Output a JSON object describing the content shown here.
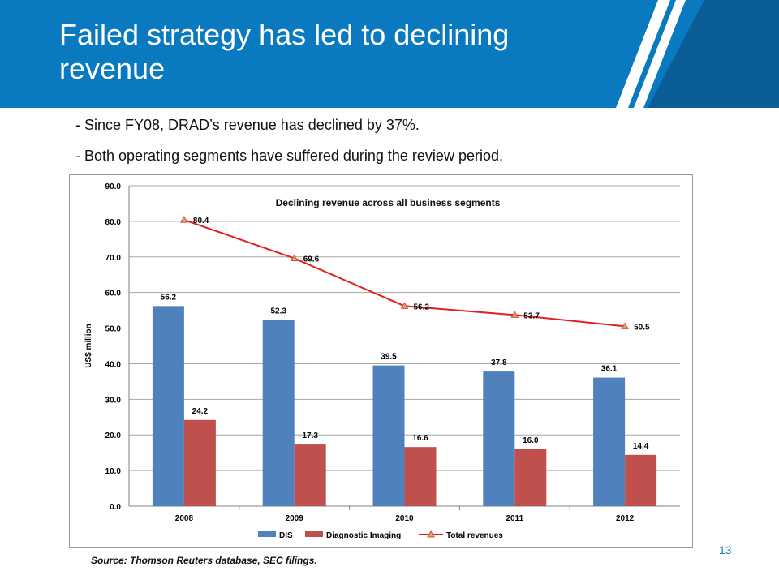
{
  "slide": {
    "title": "Failed strategy has led to declining revenue",
    "bullets": [
      "- Since FY08, DRAD’s revenue has declined by 37%.",
      "- Both operating segments have suffered during the review period."
    ],
    "source": "Source: Thomson Reuters database, SEC filings.",
    "page_number": "13"
  },
  "colors": {
    "header_blue": "#0a7ac0",
    "header_dark": "#0b5d97",
    "dis": "#4f81bd",
    "diagnostic_imaging": "#c0504d",
    "total_line": "#e02020",
    "total_marker_fill": "#f5a050",
    "total_marker_stroke": "#c0504d"
  },
  "chart_data": {
    "type": "bar",
    "title": "Declining revenue across all business segments",
    "xlabel": "",
    "ylabel": "US$ million",
    "ylim": [
      0,
      90
    ],
    "ytick_step": 10,
    "ytick_labels": [
      "0.0",
      "10.0",
      "20.0",
      "30.0",
      "40.0",
      "50.0",
      "60.0",
      "70.0",
      "80.0",
      "90.0"
    ],
    "grid": true,
    "legend_position": "bottom",
    "categories": [
      "2008",
      "2009",
      "2010",
      "2011",
      "2012"
    ],
    "series": [
      {
        "name": "DIS",
        "kind": "bar",
        "values": [
          56.2,
          52.3,
          39.5,
          37.8,
          36.1
        ],
        "labels": [
          "56.2",
          "52.3",
          "39.5",
          "37.8",
          "36.1"
        ]
      },
      {
        "name": "Diagnostic Imaging",
        "kind": "bar",
        "values": [
          24.2,
          17.3,
          16.6,
          16.0,
          14.4
        ],
        "labels": [
          "24.2",
          "17.3",
          "16.6",
          "16.0",
          "14.4"
        ]
      },
      {
        "name": "Total revenues",
        "kind": "line",
        "values": [
          80.4,
          69.6,
          56.2,
          53.7,
          50.5
        ],
        "labels": [
          "80.4",
          "69.6",
          "56.2",
          "53.7",
          "50.5"
        ]
      }
    ]
  }
}
